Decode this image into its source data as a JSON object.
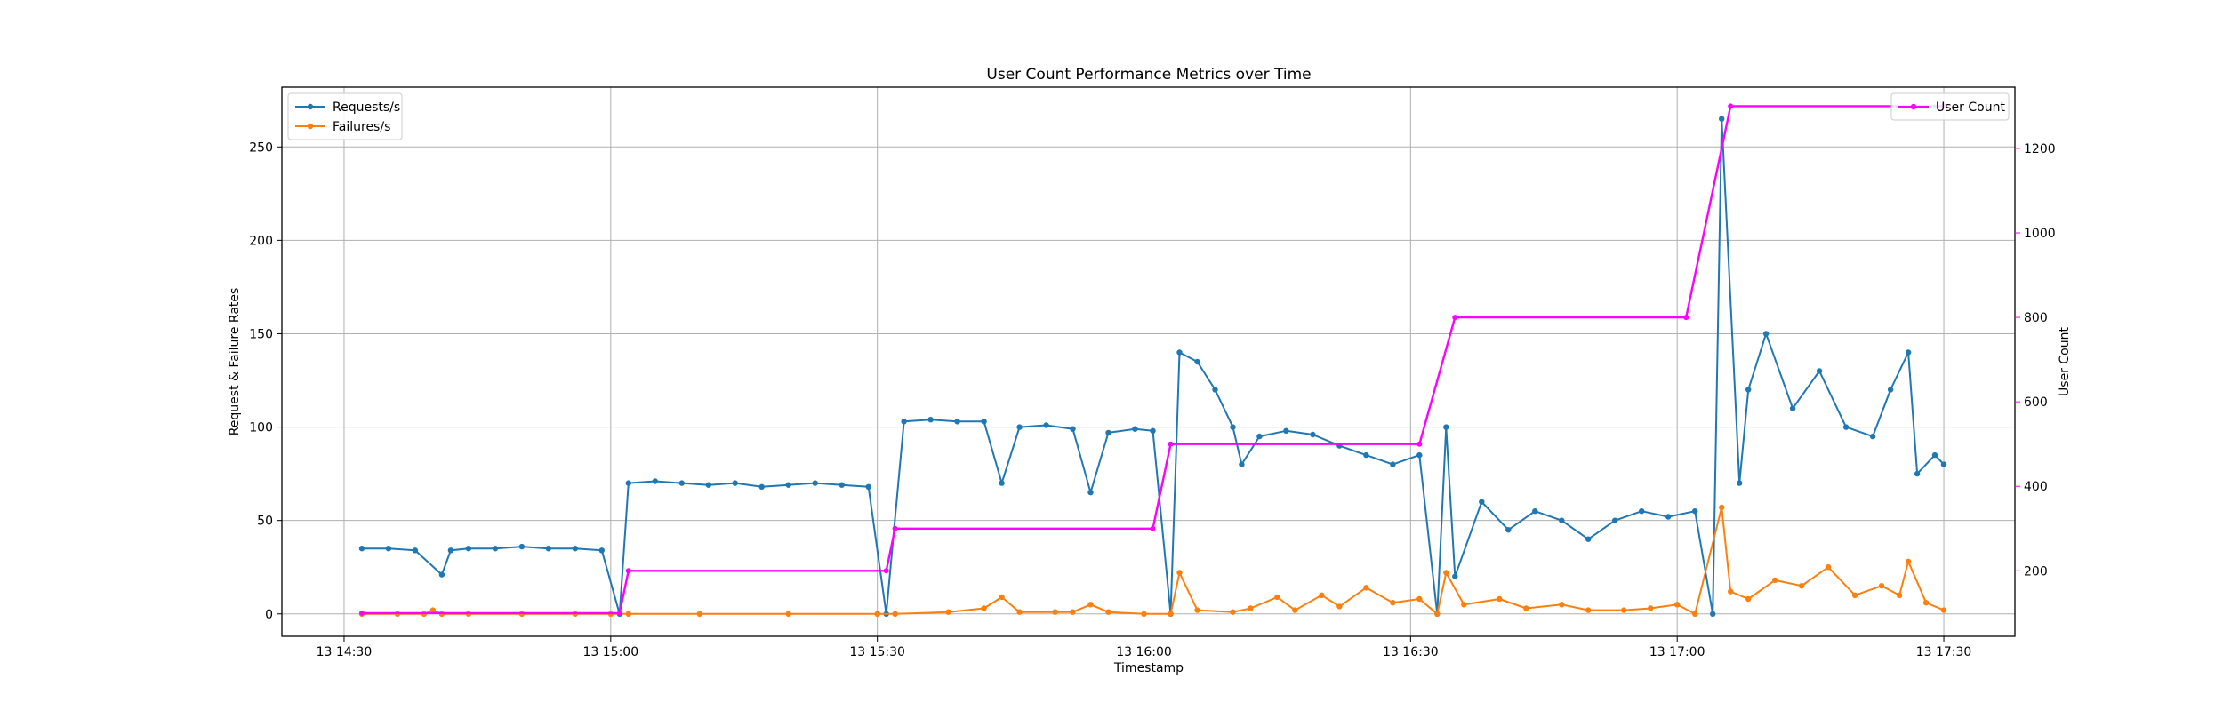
{
  "chart_data": {
    "type": "line",
    "title": "User Count Performance Metrics over Time",
    "xlabel": "Timestamp",
    "ylabel": "Request & Failure Rates",
    "y2label": "User Count",
    "xlim": [
      "13 14:23",
      "13 17:38"
    ],
    "ylim": [
      -12,
      282
    ],
    "y2lim": [
      45,
      1345
    ],
    "x_ticks": [
      "13 14:30",
      "13 15:00",
      "13 15:30",
      "13 16:00",
      "13 16:30",
      "13 17:00",
      "13 17:30"
    ],
    "y_ticks": [
      0,
      50,
      100,
      150,
      200,
      250
    ],
    "y2_ticks": [
      200,
      400,
      600,
      800,
      1000,
      1200
    ],
    "grid": true,
    "legend_left": [
      "Requests/s",
      "Failures/s"
    ],
    "legend_right": [
      "User Count"
    ],
    "legend_left_placement": "top-left",
    "legend_right_placement": "top-right",
    "colors": {
      "requests": "#1f77b4",
      "failures": "#ff7f0e",
      "users": "#ff00ff",
      "axis_right": "#ff00ff"
    },
    "series": [
      {
        "name": "Requests/s",
        "axis": "left",
        "color": "#1f77b4",
        "x": [
          "13 14:32",
          "13 14:35",
          "13 14:38",
          "13 14:41",
          "13 14:42",
          "13 14:44",
          "13 14:47",
          "13 14:50",
          "13 14:53",
          "13 14:56",
          "13 14:59",
          "13 15:01",
          "13 15:02",
          "13 15:05",
          "13 15:08",
          "13 15:11",
          "13 15:14",
          "13 15:17",
          "13 15:20",
          "13 15:23",
          "13 15:26",
          "13 15:29",
          "13 15:31",
          "13 15:33",
          "13 15:36",
          "13 15:39",
          "13 15:42",
          "13 15:44",
          "13 15:46",
          "13 15:49",
          "13 15:52",
          "13 15:54",
          "13 15:56",
          "13 15:59",
          "13 16:01",
          "13 16:03",
          "13 16:04",
          "13 16:06",
          "13 16:08",
          "13 16:10",
          "13 16:11",
          "13 16:13",
          "13 16:16",
          "13 16:19",
          "13 16:22",
          "13 16:25",
          "13 16:28",
          "13 16:31",
          "13 16:33",
          "13 16:34",
          "13 16:35",
          "13 16:38",
          "13 16:41",
          "13 16:44",
          "13 16:47",
          "13 16:50",
          "13 16:53",
          "13 16:56",
          "13 16:59",
          "13 17:02",
          "13 17:04",
          "13 17:05",
          "13 17:07",
          "13 17:08",
          "13 17:10",
          "13 17:13",
          "13 17:16",
          "13 17:19",
          "13 17:22",
          "13 17:24",
          "13 17:26",
          "13 17:27",
          "13 17:29",
          "13 17:30"
        ],
        "values": [
          35,
          35,
          34,
          21,
          34,
          35,
          35,
          36,
          35,
          35,
          34,
          0,
          70,
          71,
          70,
          69,
          70,
          68,
          69,
          70,
          69,
          68,
          0,
          103,
          104,
          103,
          103,
          70,
          100,
          101,
          99,
          65,
          97,
          99,
          98,
          0,
          140,
          135,
          120,
          100,
          80,
          95,
          98,
          96,
          90,
          85,
          80,
          85,
          0,
          100,
          20,
          60,
          45,
          55,
          50,
          40,
          50,
          55,
          52,
          55,
          0,
          265,
          70,
          120,
          150,
          110,
          130,
          100,
          95,
          120,
          140,
          75,
          85,
          80
        ]
      },
      {
        "name": "Failures/s",
        "axis": "left",
        "color": "#ff7f0e",
        "x": [
          "13 14:32",
          "13 14:36",
          "13 14:39",
          "13 14:40",
          "13 14:41",
          "13 14:44",
          "13 14:50",
          "13 14:56",
          "13 15:00",
          "13 15:02",
          "13 15:10",
          "13 15:20",
          "13 15:30",
          "13 15:32",
          "13 15:38",
          "13 15:42",
          "13 15:44",
          "13 15:46",
          "13 15:50",
          "13 15:52",
          "13 15:54",
          "13 15:56",
          "13 16:00",
          "13 16:03",
          "13 16:04",
          "13 16:06",
          "13 16:10",
          "13 16:12",
          "13 16:15",
          "13 16:17",
          "13 16:20",
          "13 16:22",
          "13 16:25",
          "13 16:28",
          "13 16:31",
          "13 16:33",
          "13 16:34",
          "13 16:36",
          "13 16:40",
          "13 16:43",
          "13 16:47",
          "13 16:50",
          "13 16:54",
          "13 16:57",
          "13 17:00",
          "13 17:02",
          "13 17:05",
          "13 17:06",
          "13 17:08",
          "13 17:11",
          "13 17:14",
          "13 17:17",
          "13 17:20",
          "13 17:23",
          "13 17:25",
          "13 17:26",
          "13 17:28",
          "13 17:30"
        ],
        "values": [
          0,
          0,
          0,
          2,
          0,
          0,
          0,
          0,
          0,
          0,
          0,
          0,
          0,
          0,
          1,
          3,
          9,
          1,
          1,
          1,
          5,
          1,
          0,
          0,
          22,
          2,
          1,
          3,
          9,
          2,
          10,
          4,
          14,
          6,
          8,
          0,
          22,
          5,
          8,
          3,
          5,
          2,
          2,
          3,
          5,
          0,
          57,
          12,
          8,
          18,
          15,
          25,
          10,
          15,
          10,
          28,
          6,
          2
        ]
      },
      {
        "name": "User Count",
        "axis": "right",
        "color": "#ff00ff",
        "x": [
          "13 14:32",
          "13 15:01",
          "13 15:02",
          "13 15:31",
          "13 15:32",
          "13 16:01",
          "13 16:03",
          "13 16:31",
          "13 16:35",
          "13 17:01",
          "13 17:06",
          "13 17:30"
        ],
        "values": [
          100,
          100,
          200,
          200,
          300,
          300,
          500,
          500,
          800,
          800,
          1300,
          1300
        ]
      }
    ]
  }
}
